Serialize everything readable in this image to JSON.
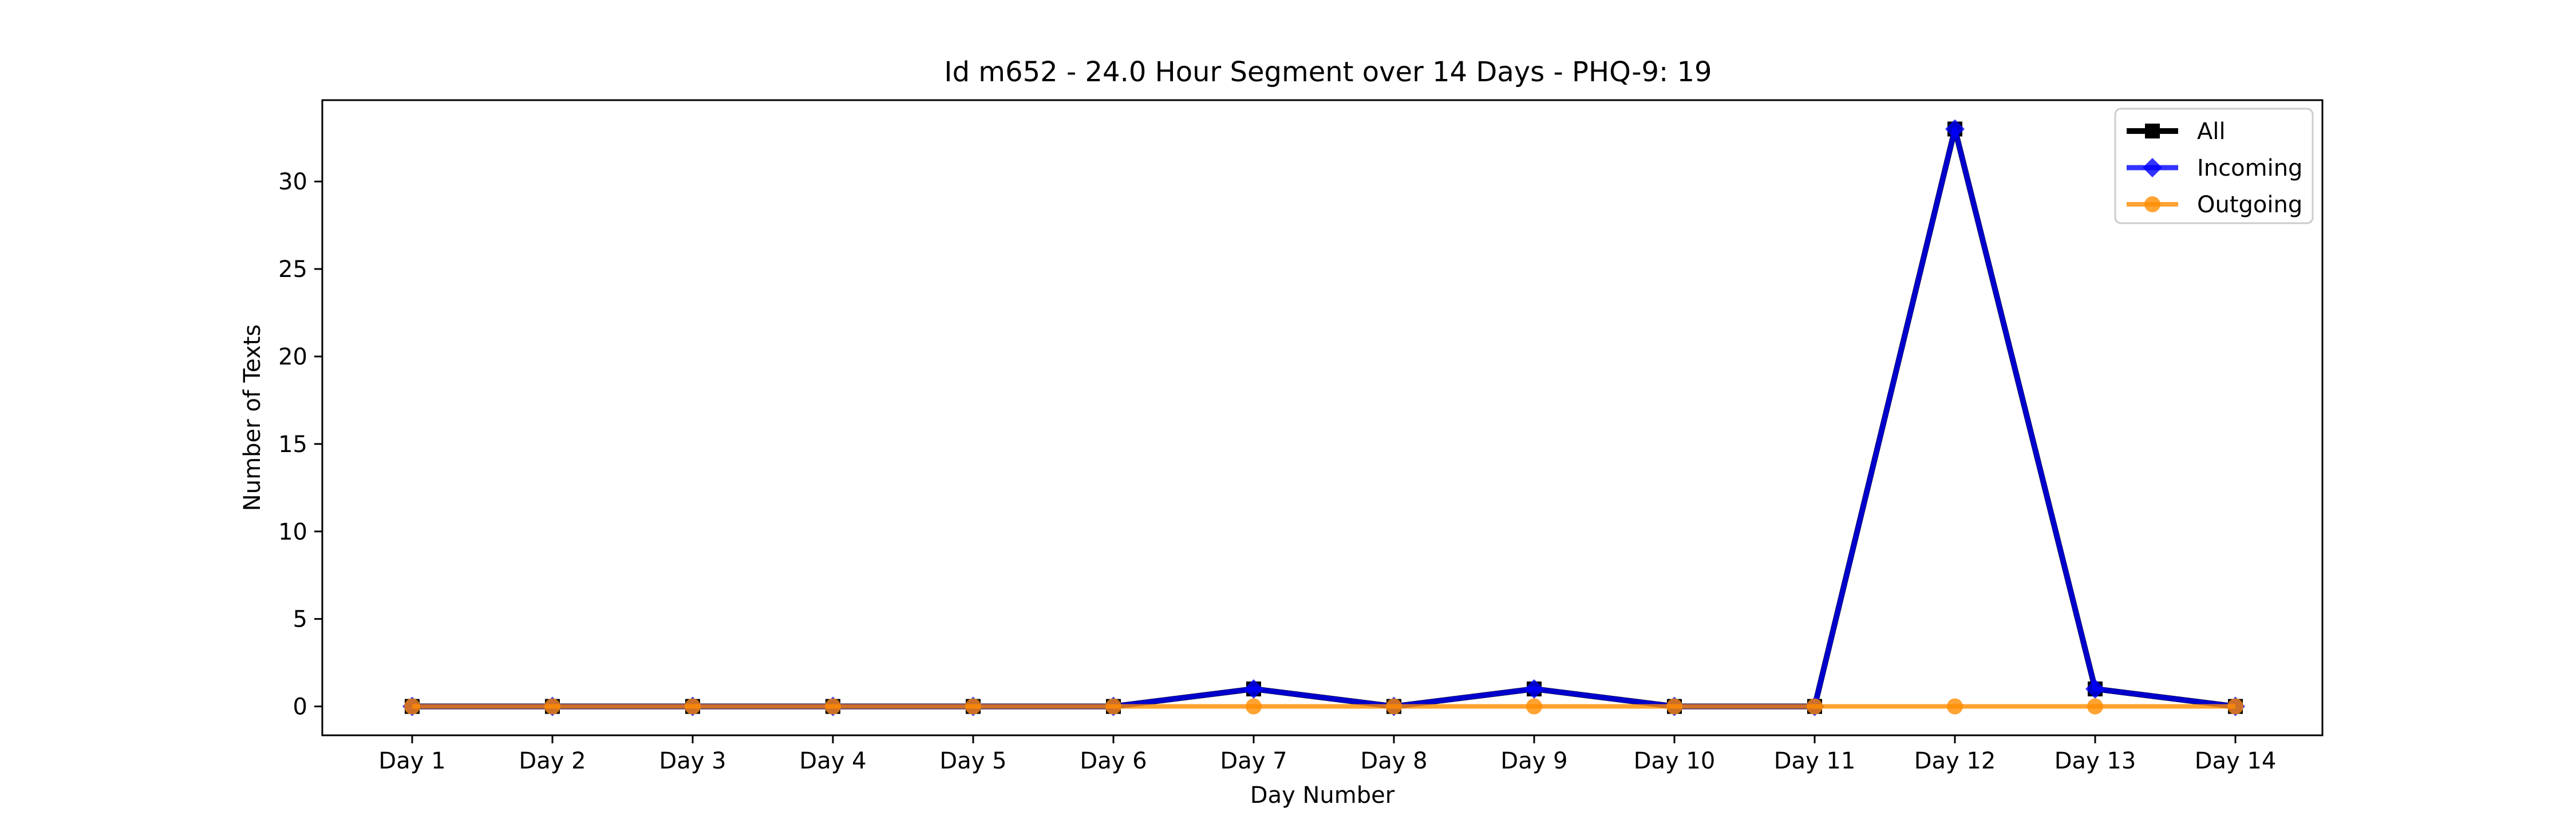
{
  "chart_data": {
    "type": "line",
    "title": "Id m652 - 24.0 Hour Segment over 14 Days - PHQ-9: 19",
    "xlabel": "Day Number",
    "ylabel": "Number of Texts",
    "categories": [
      "Day 1",
      "Day 2",
      "Day 3",
      "Day 4",
      "Day 5",
      "Day 6",
      "Day 7",
      "Day 8",
      "Day 9",
      "Day 10",
      "Day 11",
      "Day 12",
      "Day 13",
      "Day 14"
    ],
    "ylim": [
      -1.65,
      34.65
    ],
    "yticks": [
      0,
      5,
      10,
      15,
      20,
      25,
      30
    ],
    "grid": false,
    "legend_position": "top-right",
    "series": [
      {
        "name": "All",
        "color": "#000000",
        "marker": "square",
        "values": [
          0,
          0,
          0,
          0,
          0,
          0,
          1,
          0,
          1,
          0,
          0,
          33,
          1,
          0
        ]
      },
      {
        "name": "Incoming",
        "color": "#0000ff",
        "marker": "diamond",
        "values": [
          0,
          0,
          0,
          0,
          0,
          0,
          1,
          0,
          1,
          0,
          0,
          33,
          1,
          0
        ]
      },
      {
        "name": "Outgoing",
        "color": "#ff8c00",
        "marker": "circle",
        "values": [
          0,
          0,
          0,
          0,
          0,
          0,
          0,
          0,
          0,
          0,
          0,
          0,
          0,
          0
        ]
      }
    ]
  }
}
